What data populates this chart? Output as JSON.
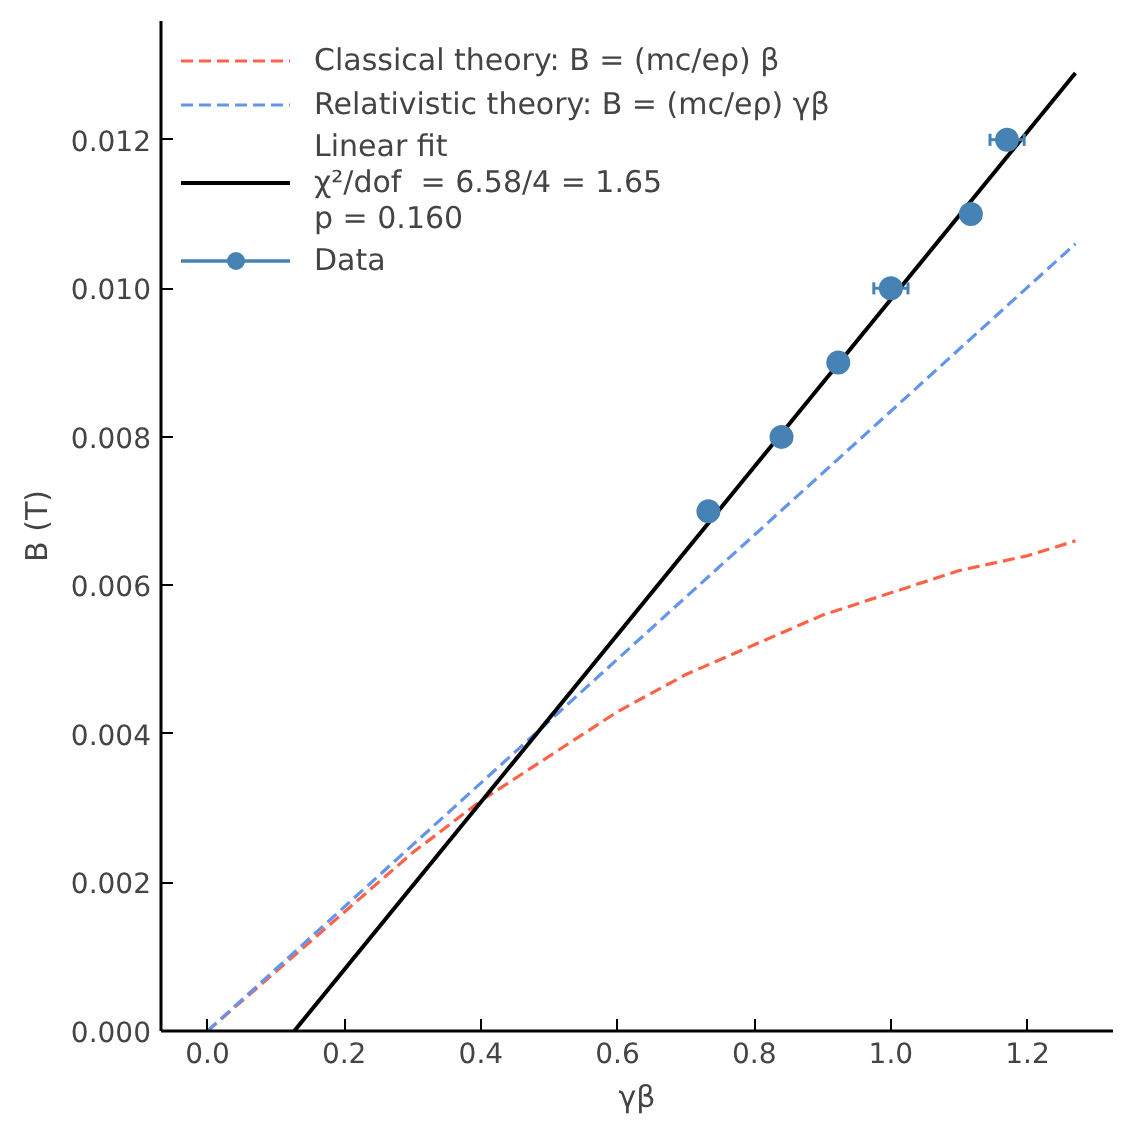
{
  "chart_data": {
    "type": "scatter",
    "xlabel": "γβ",
    "ylabel": "B (T)",
    "xlim": [
      -0.068,
      1.325
    ],
    "ylim": [
      0,
      0.0136
    ],
    "xticks": [
      {
        "value": 0,
        "label": "0.0"
      },
      0.2,
      0.4,
      0.6,
      0.8,
      {
        "value": 1,
        "label": "1.0"
      },
      1.2
    ],
    "yticks": [
      {
        "value": 0,
        "label": "0.000"
      },
      0.002,
      0.004,
      0.006,
      0.008,
      {
        "value": 0.01,
        "label": "0.010"
      },
      0.012
    ],
    "grid": false,
    "legend": "top left",
    "series": [
      {
        "type": "line",
        "line_style": "dashed",
        "name": "Classical theory: B = (mc/eρ) β",
        "color": "#ff6347",
        "x": [
          0,
          0.1,
          0.2,
          0.3,
          0.4,
          0.5,
          0.6,
          0.7,
          0.8,
          0.9,
          1.0,
          1.1,
          1.2,
          1.27
        ],
        "values": [
          0,
          0.0008,
          0.0016,
          0.0024,
          0.0031,
          0.0037,
          0.0043,
          0.0048,
          0.0052,
          0.0056,
          0.0059,
          0.0062,
          0.0064,
          0.0066
        ]
      },
      {
        "type": "line",
        "line_style": "dashed",
        "name": "Relativistic theory: B = (mc/eρ) γβ",
        "color": "#6495ed",
        "x": [
          0,
          1.27
        ],
        "values": [
          0,
          0.0106
        ]
      },
      {
        "type": "line",
        "line_style": "solid",
        "name": "Linear fit\nχ²/dof  = 6.58/4 = 1.65\np = 0.160",
        "color": "#000000",
        "x": [
          0.127,
          1.27
        ],
        "values": [
          0,
          0.0129
        ]
      },
      {
        "marker": "circle",
        "name": "Data",
        "color": "#4682b4",
        "x": [
          0.733,
          0.84,
          0.923,
          1.0,
          1.117,
          1.17
        ],
        "values": [
          0.007,
          0.008,
          0.009,
          0.01,
          0.011,
          0.012
        ],
        "xerrors": [
          null,
          null,
          null,
          0.025,
          null,
          0.025
        ]
      }
    ]
  }
}
